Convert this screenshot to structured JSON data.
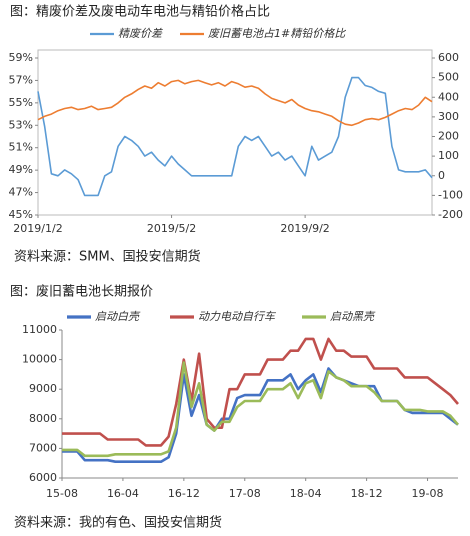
{
  "chart_data": [
    {
      "type": "line",
      "title": "图：精废价差及废电动车电池与精铅价格占比",
      "source": "资料来源：SMM、国投安信期货",
      "categories": [
        "2019/1/2",
        null,
        null,
        null,
        null,
        null,
        null,
        null,
        null,
        null,
        null,
        null,
        null,
        null,
        null,
        null,
        null,
        null,
        null,
        null,
        "2019/5/2",
        null,
        null,
        null,
        null,
        null,
        null,
        null,
        null,
        null,
        null,
        null,
        null,
        null,
        null,
        null,
        null,
        null,
        null,
        null,
        "2019/9/2",
        null,
        null,
        null,
        null,
        null,
        null,
        null,
        null,
        null,
        null,
        null,
        null,
        null,
        null,
        null,
        null,
        null,
        null,
        null
      ],
      "series": [
        {
          "name": "精废价差",
          "color": "#5b9bd5",
          "axis": "y2",
          "values": [
            430,
            250,
            10,
            0,
            30,
            10,
            -20,
            -100,
            -100,
            -100,
            0,
            20,
            150,
            200,
            180,
            150,
            100,
            120,
            80,
            50,
            100,
            60,
            30,
            0,
            0,
            0,
            0,
            0,
            0,
            0,
            150,
            200,
            180,
            200,
            150,
            100,
            120,
            80,
            100,
            50,
            0,
            150,
            80,
            100,
            120,
            200,
            400,
            500,
            500,
            460,
            450,
            430,
            420,
            150,
            30,
            20,
            20,
            20,
            30,
            -10
          ]
        },
        {
          "name": "废旧蓄电池占1#精铅价格比",
          "color": "#ed7d31",
          "values": [
            53.5,
            53.8,
            54,
            54.3,
            54.5,
            54.6,
            54.4,
            54.5,
            54.7,
            54.4,
            54.5,
            54.6,
            55,
            55.5,
            55.8,
            56.2,
            56.5,
            56.3,
            56.8,
            56.5,
            56.9,
            57,
            56.7,
            56.9,
            57,
            56.8,
            56.6,
            56.8,
            56.5,
            56.9,
            56.7,
            56.4,
            56.5,
            56.3,
            55.8,
            55.4,
            55.2,
            55,
            55.3,
            54.8,
            54.5,
            54.3,
            54.2,
            54,
            53.8,
            53.4,
            53.1,
            53,
            53.2,
            53.5,
            53.6,
            53.5,
            53.7,
            54,
            54.3,
            54.5,
            54.4,
            54.8,
            55.5,
            55.1
          ]
        }
      ],
      "ylim": [
        45,
        59
      ],
      "yticks": [
        {
          "value": 45,
          "label": "45%"
        },
        {
          "value": 47,
          "label": "47%"
        },
        {
          "value": 49,
          "label": "49%"
        },
        {
          "value": 51,
          "label": "51%"
        },
        {
          "value": 53,
          "label": "53%"
        },
        {
          "value": 55,
          "label": "55%"
        },
        {
          "value": 57,
          "label": "57%"
        },
        {
          "value": 59,
          "label": "59%"
        }
      ],
      "y2lim": [
        -200,
        600
      ],
      "y2ticks": [
        -200,
        -100,
        0,
        100,
        200,
        300,
        400,
        500,
        600
      ],
      "frame": true
    },
    {
      "type": "line",
      "title": "图：废旧蓄电池长期报价",
      "source": "资料来源：我的有色、国投安信期货",
      "categories": [
        "15-08",
        null,
        null,
        null,
        null,
        null,
        null,
        null,
        "16-04",
        null,
        null,
        null,
        null,
        null,
        null,
        null,
        "16-12",
        null,
        null,
        null,
        null,
        null,
        null,
        null,
        "17-08",
        null,
        null,
        null,
        null,
        null,
        null,
        null,
        "18-04",
        null,
        null,
        null,
        null,
        null,
        null,
        null,
        "18-12",
        null,
        null,
        null,
        null,
        null,
        null,
        null,
        "19-08",
        null,
        null,
        null,
        null
      ],
      "series": [
        {
          "name": "启动白壳",
          "color": "#4472c4",
          "values": [
            6900,
            6900,
            6900,
            6600,
            6600,
            6600,
            6600,
            6550,
            6550,
            6550,
            6550,
            6550,
            6550,
            6550,
            6700,
            7500,
            9500,
            8100,
            8800,
            7800,
            7600,
            8000,
            8000,
            8700,
            8800,
            8800,
            8800,
            9300,
            9300,
            9300,
            9500,
            9000,
            9300,
            9500,
            8900,
            9700,
            9400,
            9300,
            9200,
            9100,
            9100,
            9100,
            8600,
            8600,
            8600,
            8300,
            8200,
            8200,
            8200,
            8200,
            8200,
            8000,
            7800
          ]
        },
        {
          "name": "动力电动自行车",
          "color": "#c0504d",
          "values": [
            7500,
            7500,
            7500,
            7500,
            7500,
            7500,
            7300,
            7300,
            7300,
            7300,
            7300,
            7100,
            7100,
            7100,
            7400,
            8500,
            10000,
            8600,
            10200,
            8000,
            7700,
            7700,
            9000,
            9000,
            9500,
            9500,
            9500,
            10000,
            10000,
            10000,
            10300,
            10300,
            10700,
            10700,
            10000,
            10700,
            10300,
            10300,
            10100,
            10100,
            10100,
            9700,
            9700,
            9700,
            9700,
            9400,
            9400,
            9400,
            9400,
            9200,
            9000,
            8800,
            8500
          ]
        },
        {
          "name": "启动黑壳",
          "color": "#9bbb59",
          "values": [
            6950,
            6950,
            6950,
            6750,
            6750,
            6750,
            6750,
            6800,
            6800,
            6800,
            6800,
            6800,
            6800,
            6800,
            6900,
            7700,
            9900,
            8400,
            9200,
            7800,
            7600,
            7900,
            7900,
            8400,
            8600,
            8600,
            8600,
            9000,
            9000,
            9000,
            9200,
            8700,
            9200,
            9300,
            8700,
            9600,
            9400,
            9300,
            9100,
            9100,
            9100,
            8900,
            8600,
            8600,
            8600,
            8300,
            8300,
            8300,
            8250,
            8250,
            8250,
            8100,
            7800
          ]
        }
      ],
      "ylim": [
        6000,
        11000
      ],
      "yticks": [
        6000,
        7000,
        8000,
        9000,
        10000,
        11000
      ],
      "frame": false
    }
  ]
}
